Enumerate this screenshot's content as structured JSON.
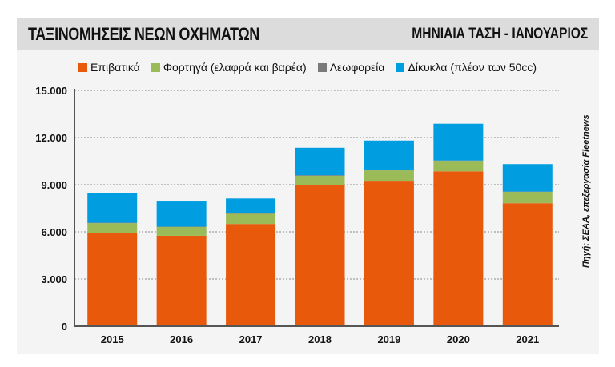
{
  "header": {
    "title": "ΤΑΞΙΝΟΜΗΣΕΙΣ ΝΕΩΝ ΟΧΗΜΑΤΩΝ",
    "subtitle": "ΜΗΝΙΑΙΑ ΤΑΣΗ - ΙΑΝΟΥΑΡΙΟΣ"
  },
  "source": "Πηγή: ΣΕΑΑ, επεξεργασία Fleetnews",
  "chart_data": {
    "type": "bar",
    "stacked": true,
    "title": "ΤΑΞΙΝΟΜΗΣΕΙΣ ΝΕΩΝ ΟΧΗΜΑΤΩΝ",
    "subtitle": "ΜΗΝΙΑΙΑ ΤΑΣΗ - ΙΑΝΟΥΑΡΙΟΣ",
    "xlabel": "",
    "ylabel": "",
    "categories": [
      "2015",
      "2016",
      "2017",
      "2018",
      "2019",
      "2020",
      "2021"
    ],
    "series": [
      {
        "name": "Επιβατικά",
        "color": "#e8590c",
        "values": [
          5900,
          5750,
          6500,
          8950,
          9250,
          9850,
          7820
        ]
      },
      {
        "name": "Φορτηγά (ελαφρά και βαρέα)",
        "color": "#9bbb59",
        "values": [
          650,
          560,
          650,
          610,
          660,
          670,
          720
        ]
      },
      {
        "name": "Λεωφορεία",
        "color": "#7a7a7a",
        "values": [
          30,
          20,
          20,
          40,
          40,
          20,
          20
        ]
      },
      {
        "name": "Δίκυκλα (πλέον των 50cc)",
        "color": "#009ee0",
        "values": [
          1870,
          1600,
          950,
          1750,
          1860,
          2340,
          1750
        ]
      }
    ],
    "ylim": [
      0,
      15000
    ],
    "yticks": [
      0,
      3000,
      6000,
      9000,
      12000,
      15000
    ],
    "ytick_labels": [
      "0",
      "3.000",
      "6.000",
      "9.000",
      "12.000",
      "15.000"
    ],
    "grid": "horizontal dotted",
    "legend_position": "top-center"
  }
}
